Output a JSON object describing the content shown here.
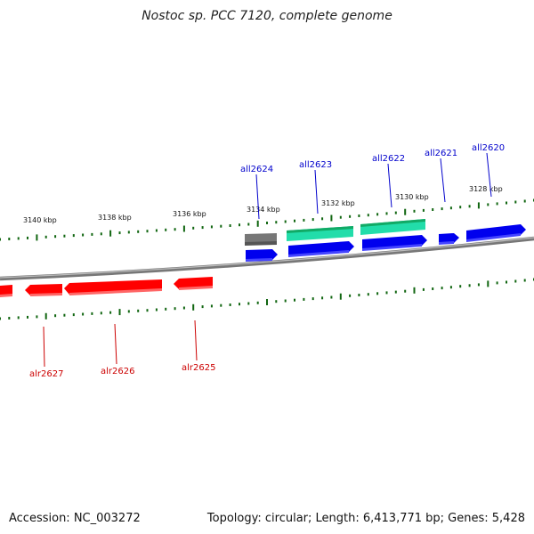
{
  "title": "Nostoc sp. PCC 7120, complete genome",
  "footer": {
    "accession": "Accession: NC_003272",
    "summary": "Topology: circular; Length: 6,413,771 bp; Genes: 5,428"
  },
  "kbp_labels": [
    "3140 kbp",
    "3138 kbp",
    "3136 kbp",
    "3134 kbp",
    "3132 kbp",
    "3130 kbp",
    "3128 kbp"
  ],
  "gene_labels_top": [
    "all2624",
    "all2623",
    "all2622",
    "all2621",
    "all2620"
  ],
  "gene_labels_bottom": [
    "alr2627",
    "alr2626",
    "alr2625"
  ],
  "colors": {
    "forward_gene": "#ff0000",
    "reverse_gene": "#0000ee",
    "rna_gene": "#22dd99",
    "pseudo_gene": "#777777",
    "tick": "#116611",
    "backbone": "#888888"
  }
}
